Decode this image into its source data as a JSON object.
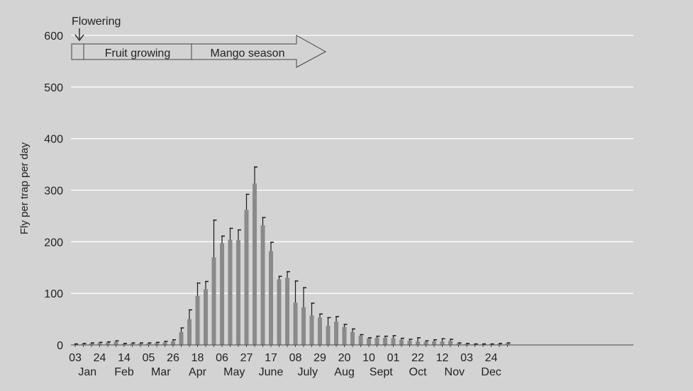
{
  "chart_data": {
    "type": "bar",
    "title": "",
    "ylabel": "Fly per trap per day",
    "xlabel": "",
    "ylim": [
      0,
      600
    ],
    "yticks": [
      0,
      100,
      200,
      300,
      400,
      500,
      600
    ],
    "grid": "horizontal",
    "colors": {
      "bar": "#8a8a8a",
      "error": "#1a1a1a",
      "background": "#d3d3d3",
      "grid": "#ffffff"
    },
    "date_tick_labels": [
      "03",
      "24",
      "14",
      "05",
      "26",
      "18",
      "06",
      "27",
      "17",
      "08",
      "29",
      "20",
      "10",
      "01",
      "22",
      "12",
      "03",
      "24"
    ],
    "month_labels": [
      "Jan",
      "Feb",
      "Mar",
      "Apr",
      "May",
      "June",
      "July",
      "Aug",
      "Sept",
      "Oct",
      "Nov",
      "Dec"
    ],
    "annotations": {
      "flowering": "Flowering",
      "fruit_growing": "Fruit growing",
      "mango_season": "Mango season"
    },
    "values": [
      1,
      2,
      3,
      4,
      5,
      6,
      2,
      3,
      3,
      3,
      4,
      5,
      7,
      25,
      50,
      95,
      108,
      170,
      197,
      204,
      203,
      262,
      313,
      232,
      182,
      127,
      130,
      82,
      73,
      57,
      53,
      37,
      45,
      35,
      25,
      18,
      13,
      14,
      14,
      13,
      10,
      8,
      7,
      6,
      7,
      7,
      8,
      3,
      2,
      1,
      1,
      1,
      2,
      3
    ],
    "errors": [
      1,
      1,
      1,
      1,
      1,
      2,
      1,
      1,
      1,
      1,
      1,
      2,
      3,
      8,
      18,
      25,
      15,
      72,
      14,
      22,
      20,
      30,
      32,
      15,
      17,
      6,
      12,
      42,
      38,
      24,
      7,
      16,
      10,
      5,
      6,
      2,
      1,
      3,
      3,
      5,
      3,
      3,
      7,
      2,
      3,
      5,
      3,
      1,
      1,
      1,
      1,
      1,
      1,
      1
    ]
  }
}
